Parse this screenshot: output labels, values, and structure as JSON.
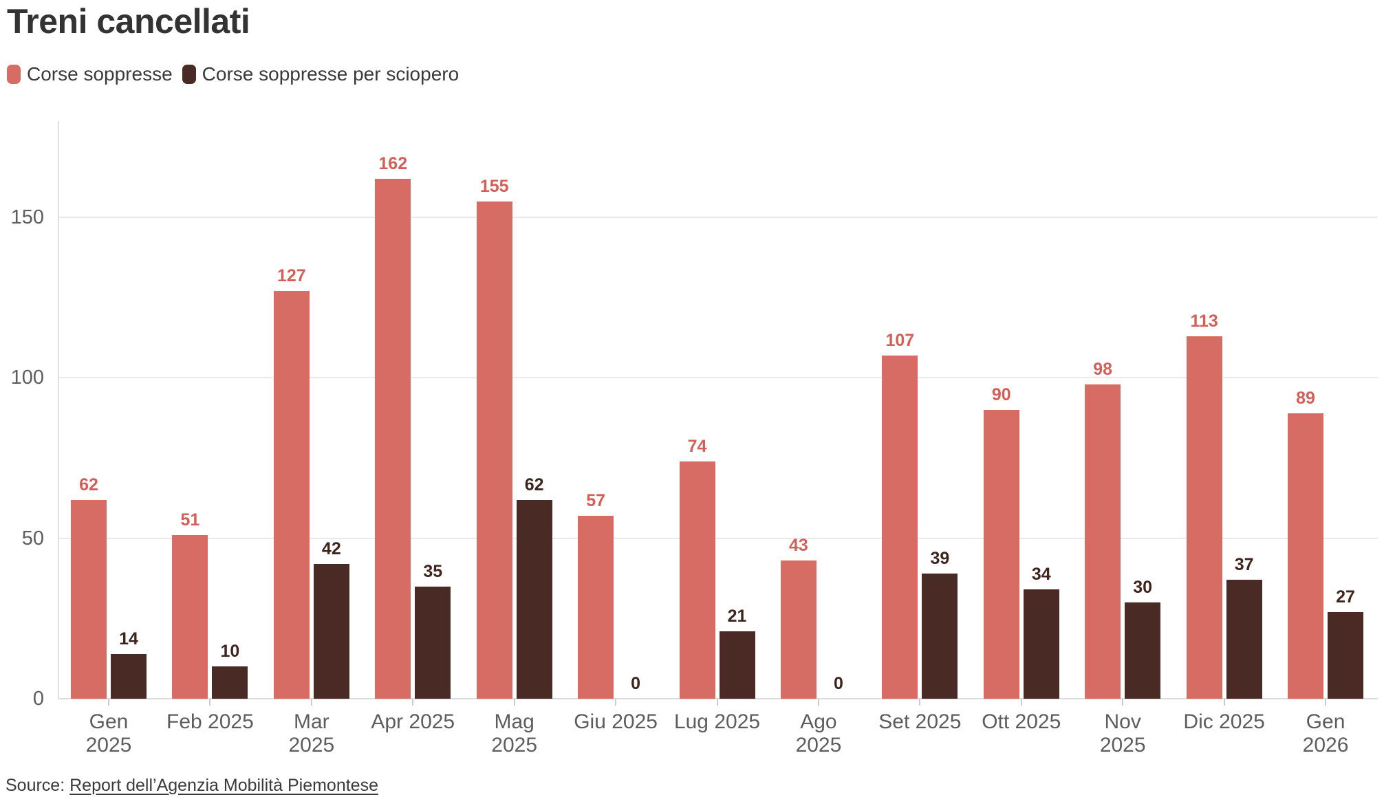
{
  "title": "Treni cancellati",
  "legend": {
    "items": [
      {
        "label": "Corse soppresse",
        "color": "#d66c63"
      },
      {
        "label": "Corse soppresse per sciopero",
        "color": "#4a2a25"
      }
    ]
  },
  "source": {
    "prefix": "Source:",
    "link_text": "Report dell’Agenzia Mobilità Piemontese"
  },
  "chart_data": {
    "type": "bar",
    "title": "Treni cancellati",
    "categories": [
      "Gen\n2025",
      "Feb 2025",
      "Mar\n2025",
      "Apr 2025",
      "Mag\n2025",
      "Giu 2025",
      "Lug 2025",
      "Ago\n2025",
      "Set 2025",
      "Ott 2025",
      "Nov\n2025",
      "Dic 2025",
      "Gen\n2026"
    ],
    "series": [
      {
        "name": "Corse soppresse",
        "color": "#d66c63",
        "label_color": "#d35f57",
        "values": [
          62,
          51,
          127,
          162,
          155,
          57,
          74,
          43,
          107,
          90,
          98,
          113,
          89
        ]
      },
      {
        "name": "Corse soppresse per sciopero",
        "color": "#4a2a25",
        "label_color": "#3f241e",
        "values": [
          14,
          10,
          42,
          35,
          62,
          0,
          21,
          0,
          39,
          34,
          30,
          37,
          27
        ]
      }
    ],
    "yticks": [
      0,
      50,
      100,
      150
    ],
    "ylim": [
      0,
      180
    ],
    "grid": "horizontal",
    "legend_position": "top",
    "value_labels": true,
    "axis_colors": {
      "grid": "#e9e9e9",
      "baseline": "#dcdcdc",
      "axis": "#e0e0e0",
      "tick": "#cbcbcb",
      "text": "#5d5d5d"
    }
  }
}
